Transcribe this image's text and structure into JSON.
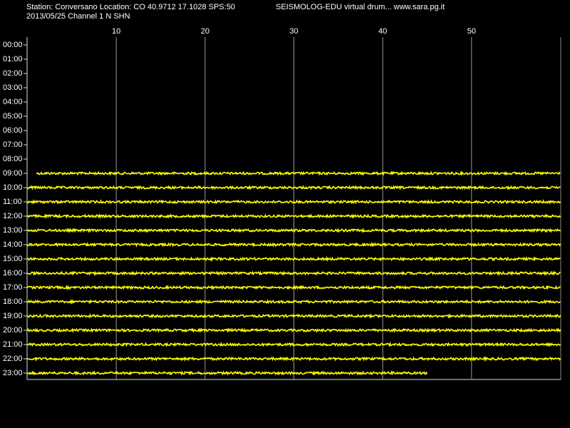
{
  "chart_data": {
    "type": "drum",
    "title": "Station: Conversano Location: CO 40.9712 17.1028 SPS:50",
    "subtitle": "2013/05/25  Channel 1 N SHN",
    "note": "SEISMOLOG-EDU virtual drum... www.sara.pg.it",
    "categories": [
      "00:00",
      "01:00",
      "02:00",
      "03:00",
      "04:00",
      "05:00",
      "06:00",
      "07:00",
      "08:00",
      "09:00",
      "10:00",
      "11:00",
      "12:00",
      "13:00",
      "14:00",
      "15:00",
      "16:00",
      "17:00",
      "18:00",
      "19:00",
      "20:00",
      "21:00",
      "22:00",
      "23:00"
    ],
    "trace_start": [
      null,
      null,
      null,
      null,
      null,
      null,
      null,
      null,
      null,
      1,
      0,
      0,
      0,
      0,
      0,
      0,
      0,
      0,
      0,
      0,
      0,
      0,
      0,
      0
    ],
    "trace_end": [
      null,
      null,
      null,
      null,
      null,
      null,
      null,
      null,
      null,
      60,
      60,
      60,
      60,
      60,
      60,
      60,
      60,
      60,
      60,
      60,
      60,
      60,
      60,
      45
    ],
    "color": "#ffff00",
    "xlim": [
      0,
      60
    ],
    "xticks": [
      10,
      20,
      30,
      40,
      50
    ],
    "grid": true
  }
}
